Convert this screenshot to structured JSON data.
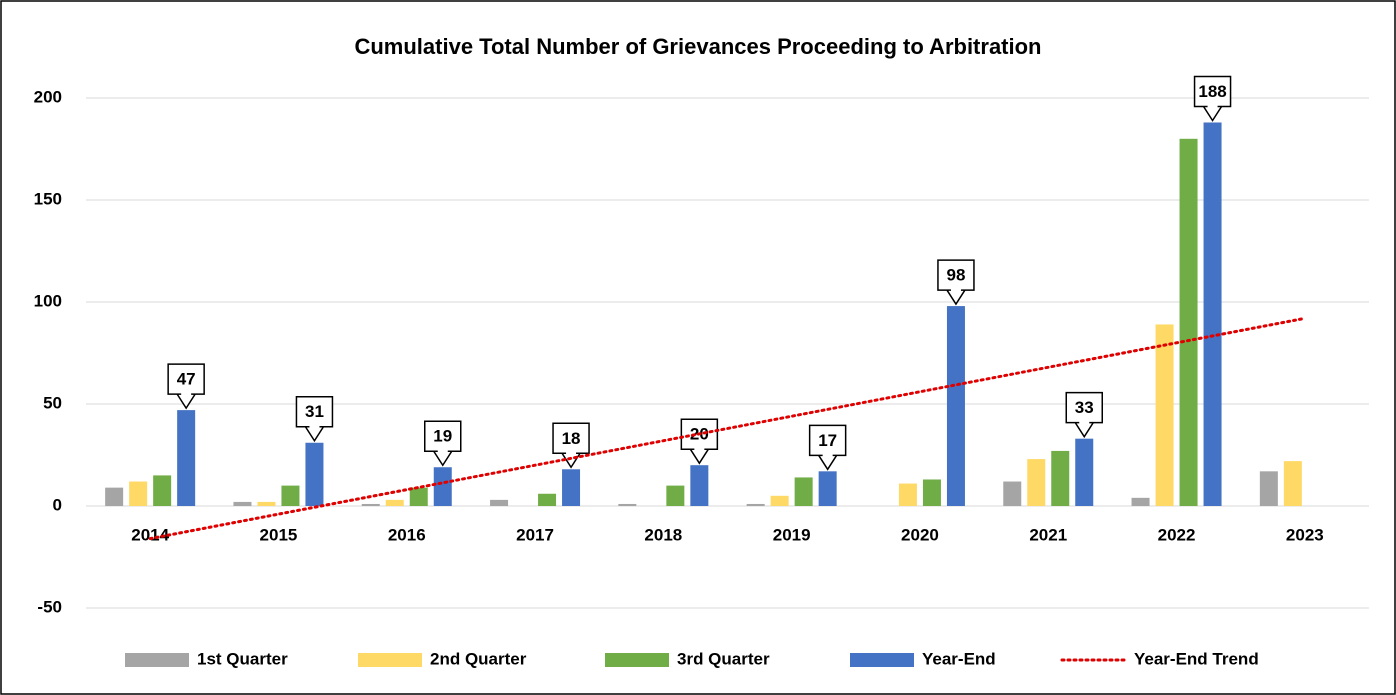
{
  "chart_data": {
    "type": "bar",
    "title": "Cumulative Total Number of Grievances Proceeding to Arbitration",
    "categories": [
      "2014",
      "2015",
      "2016",
      "2017",
      "2018",
      "2019",
      "2020",
      "2021",
      "2022",
      "2023"
    ],
    "series": [
      {
        "name": "1st Quarter",
        "color": "#a5a5a5",
        "values": [
          9,
          2,
          1,
          3,
          1,
          1,
          0,
          12,
          4,
          17
        ]
      },
      {
        "name": "2nd Quarter",
        "color": "#ffd966",
        "values": [
          12,
          2,
          3,
          0,
          0,
          5,
          11,
          23,
          89,
          22
        ]
      },
      {
        "name": "3rd Quarter",
        "color": "#70ad47",
        "values": [
          15,
          10,
          9,
          6,
          10,
          14,
          13,
          27,
          180,
          null
        ]
      },
      {
        "name": "Year-End",
        "color": "#4472c4",
        "values": [
          47,
          31,
          19,
          18,
          20,
          17,
          98,
          33,
          188,
          null
        ],
        "callouts": true
      },
      {
        "name": "Year-End Trend",
        "color": "#e00000",
        "type": "line",
        "dotted": true,
        "values": [
          -16,
          -4,
          8,
          20,
          32,
          44,
          56,
          68,
          80,
          92
        ]
      }
    ],
    "ylim": [
      -50,
      200
    ],
    "yticks": [
      -50,
      0,
      50,
      100,
      150,
      200
    ],
    "grid": true,
    "legend": "bottom"
  }
}
